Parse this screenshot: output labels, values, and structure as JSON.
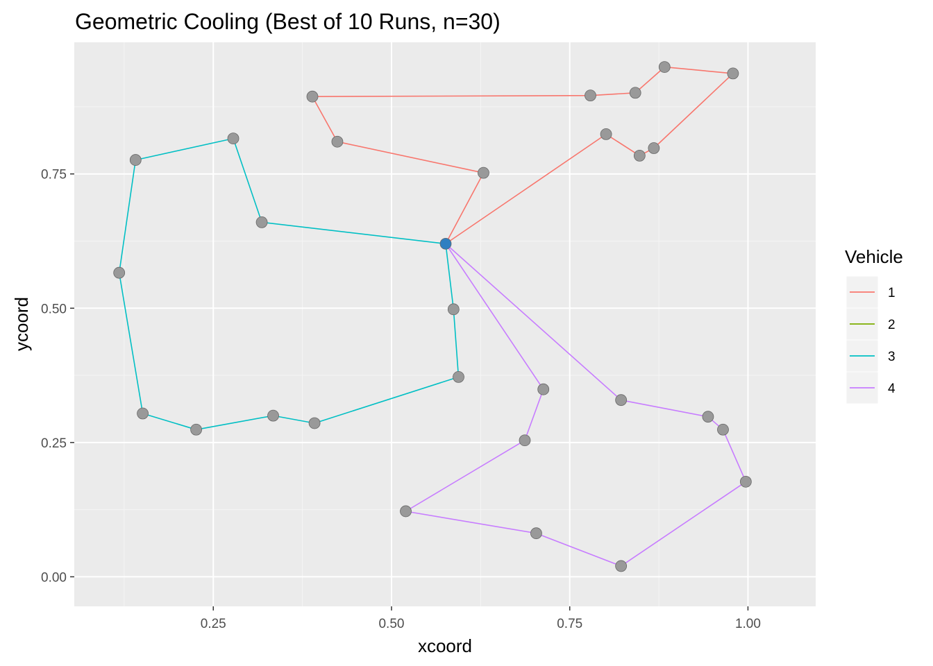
{
  "chart_data": {
    "type": "line",
    "title": "Geometric Cooling (Best of 10 Runs, n=30)",
    "xlabel": "xcoord",
    "ylabel": "ycoord",
    "xlim": [
      0.055,
      1.095
    ],
    "ylim": [
      -0.055,
      0.995
    ],
    "xticks": [
      0.25,
      0.5,
      0.75,
      1.0
    ],
    "xtick_labels": [
      "0.25",
      "0.50",
      "0.75",
      "1.00"
    ],
    "yticks": [
      0.0,
      0.25,
      0.5,
      0.75
    ],
    "ytick_labels": [
      "0.00",
      "0.25",
      "0.50",
      "0.75"
    ],
    "grid": true,
    "legend": {
      "title": "Vehicle",
      "position": "right",
      "entries": [
        {
          "label": "1",
          "color": "#F8766D"
        },
        {
          "label": "2",
          "color": "#7CAE00"
        },
        {
          "label": "3",
          "color": "#00BFC4"
        },
        {
          "label": "4",
          "color": "#C77CFF"
        }
      ]
    },
    "depot": {
      "x": 0.576,
      "y": 0.62,
      "color": "#2f7fc1"
    },
    "point_color": "#999999",
    "series": [
      {
        "name": "1",
        "color": "#F8766D",
        "x": [
          0.576,
          0.629,
          0.424,
          0.389,
          0.779,
          0.842,
          0.883,
          0.979,
          0.868,
          0.848,
          0.801,
          0.576
        ],
        "y": [
          0.62,
          0.752,
          0.81,
          0.894,
          0.896,
          0.901,
          0.949,
          0.937,
          0.798,
          0.784,
          0.824,
          0.62
        ]
      },
      {
        "name": "2",
        "color": "#7CAE00",
        "x": [],
        "y": []
      },
      {
        "name": "3",
        "color": "#00BFC4",
        "x": [
          0.576,
          0.318,
          0.278,
          0.141,
          0.118,
          0.151,
          0.226,
          0.334,
          0.392,
          0.594,
          0.587,
          0.576
        ],
        "y": [
          0.62,
          0.66,
          0.816,
          0.776,
          0.566,
          0.304,
          0.274,
          0.3,
          0.286,
          0.372,
          0.498,
          0.62
        ]
      },
      {
        "name": "4",
        "color": "#C77CFF",
        "x": [
          0.576,
          0.713,
          0.687,
          0.52,
          0.703,
          0.822,
          0.997,
          0.965,
          0.944,
          0.822,
          0.576
        ],
        "y": [
          0.62,
          0.349,
          0.254,
          0.122,
          0.081,
          0.02,
          0.177,
          0.274,
          0.298,
          0.329,
          0.62
        ]
      }
    ]
  }
}
